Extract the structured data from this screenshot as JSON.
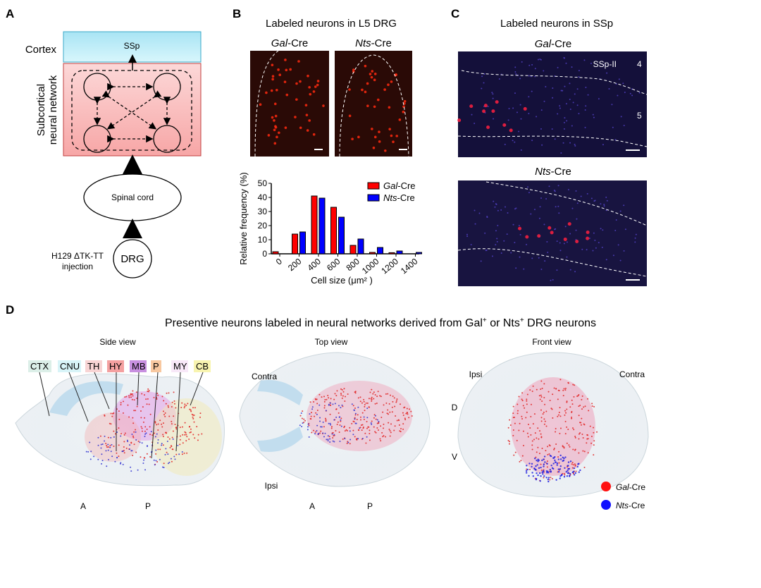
{
  "panelA": {
    "label": "A",
    "cortex": "Cortex",
    "ssp": "SSp",
    "subcortical1": "Subcortical",
    "subcortical2": "neural network",
    "spinal": "Spinal cord",
    "drg": "DRG",
    "inj1": "H129 ΔTK-TT",
    "inj2": "injection",
    "colors": {
      "cortex": "#bfeef8",
      "subcortical": "#f8b8b8"
    }
  },
  "panelB": {
    "label": "B",
    "title": "Labeled neurons in L5 DRG",
    "img1_gene": "Gal",
    "img1_suffix": "-Cre",
    "img2_gene": "Nts",
    "img2_suffix": "-Cre"
  },
  "panelC": {
    "label": "C",
    "title": "Labeled neurons in SSp",
    "img1_gene": "Gal",
    "img1_suffix": "-Cre",
    "img2_gene": "Nts",
    "img2_suffix": "-Cre",
    "layer_label": "SSp-II",
    "layer4": "4",
    "layer5": "5"
  },
  "panelD": {
    "label": "D",
    "title": "Presentive neurons labeled in neural networks derived from Gal",
    "title_sup1": "+",
    "title_mid": " or Nts",
    "title_sup2": "+",
    "title_end": " DRG neurons",
    "side": {
      "title": "Side view",
      "regions": [
        "CTX",
        "CNU",
        "TH",
        "HY",
        "MB",
        "P",
        "MY",
        "CB"
      ],
      "region_colors": [
        "#dcefe8",
        "#d8f4f8",
        "#f8d4d4",
        "#f4a0a0",
        "#c890e0",
        "#f8c8a0",
        "#f8e8f8",
        "#f8f4b0"
      ],
      "a": "A",
      "p": "P"
    },
    "top": {
      "title": "Top view",
      "contra": "Contra",
      "ipsi": "Ipsi",
      "a": "A",
      "p": "P"
    },
    "front": {
      "title": "Front view",
      "ipsi": "Ipsi",
      "contra": "Contra",
      "d": "D",
      "v": "V"
    },
    "legend": [
      {
        "gene": "Gal",
        "suffix": "-Cre",
        "color": "#ff1010"
      },
      {
        "gene": "Nts",
        "suffix": "-Cre",
        "color": "#1010ff"
      }
    ]
  },
  "chart_data": {
    "type": "bar",
    "xlabel": "Cell size (μm² )",
    "ylabel": "Relative frequency (%)",
    "ylim": [
      0,
      50
    ],
    "yticks": [
      "0",
      "10",
      "20",
      "30",
      "40",
      "50"
    ],
    "categories": [
      "0",
      "200",
      "400",
      "600",
      "800",
      "1000",
      "1200",
      "1400"
    ],
    "series": [
      {
        "name": "Gal-Cre",
        "gene": "Gal",
        "suffix": "-Cre",
        "color": "#ff0000",
        "values": [
          1.5,
          14,
          41,
          33,
          6,
          1,
          0.8,
          0
        ]
      },
      {
        "name": "Nts-Cre",
        "gene": "Nts",
        "suffix": "-Cre",
        "color": "#0000ff",
        "values": [
          0,
          15.5,
          39.5,
          26,
          10.5,
          4.5,
          2,
          1
        ]
      }
    ],
    "legend": "top-right"
  }
}
